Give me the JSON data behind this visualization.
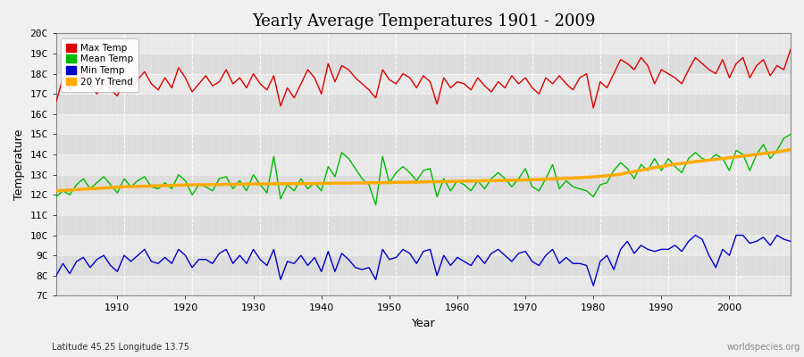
{
  "title": "Yearly Average Temperatures 1901 - 2009",
  "xlabel": "Year",
  "ylabel": "Temperature",
  "lat_lon_label": "Latitude 45.25 Longitude 13.75",
  "watermark": "worldspecies.org",
  "years_start": 1901,
  "years_end": 2009,
  "max_temp_color": "#dd0000",
  "mean_temp_color": "#00bb00",
  "min_temp_color": "#0000cc",
  "trend_color": "#ffaa00",
  "figure_bg_color": "#f0f0f0",
  "plot_bg_color": "#e8e8e8",
  "band_color_dark": "#dcdcdc",
  "grid_color": "#ffffff",
  "ytick_labels": [
    "7C",
    "8C",
    "9C",
    "10C",
    "11C",
    "12C",
    "13C",
    "14C",
    "15C",
    "16C",
    "17C",
    "18C",
    "19C",
    "20C"
  ],
  "ytick_values": [
    7,
    8,
    9,
    10,
    11,
    12,
    13,
    14,
    15,
    16,
    17,
    18,
    19,
    20
  ],
  "ylim": [
    7,
    20
  ],
  "xlim": [
    1901,
    2009
  ],
  "legend_entries": [
    "Max Temp",
    "Mean Temp",
    "Min Temp",
    "20 Yr Trend"
  ],
  "legend_colors": [
    "#dd0000",
    "#00bb00",
    "#0000cc",
    "#ffaa00"
  ],
  "max_temps": [
    16.6,
    17.8,
    17.2,
    17.5,
    18.0,
    17.4,
    17.0,
    17.6,
    17.2,
    16.9,
    17.8,
    17.3,
    17.7,
    18.1,
    17.5,
    17.2,
    17.8,
    17.3,
    18.3,
    17.8,
    17.1,
    17.5,
    17.9,
    17.4,
    17.6,
    18.2,
    17.5,
    17.8,
    17.3,
    18.0,
    17.5,
    17.2,
    17.9,
    16.4,
    17.3,
    16.8,
    17.5,
    18.2,
    17.8,
    17.0,
    18.5,
    17.6,
    18.4,
    18.2,
    17.8,
    17.5,
    17.2,
    16.8,
    18.2,
    17.7,
    17.5,
    18.0,
    17.8,
    17.3,
    17.9,
    17.6,
    16.5,
    17.8,
    17.3,
    17.6,
    17.5,
    17.2,
    17.8,
    17.4,
    17.1,
    17.6,
    17.3,
    17.9,
    17.5,
    17.8,
    17.3,
    17.0,
    17.8,
    17.5,
    17.9,
    17.5,
    17.2,
    17.8,
    18.0,
    16.3,
    17.6,
    17.3,
    18.0,
    18.7,
    18.5,
    18.2,
    18.8,
    18.4,
    17.5,
    18.2,
    18.0,
    17.8,
    17.5,
    18.2,
    18.8,
    18.5,
    18.2,
    18.0,
    18.7,
    17.8,
    18.5,
    18.8,
    17.8,
    18.4,
    18.7,
    17.9,
    18.4,
    18.2,
    19.2
  ],
  "mean_temps": [
    11.9,
    12.2,
    12.0,
    12.5,
    12.8,
    12.3,
    12.6,
    12.9,
    12.5,
    12.1,
    12.8,
    12.4,
    12.7,
    12.9,
    12.4,
    12.3,
    12.6,
    12.3,
    13.0,
    12.7,
    12.0,
    12.5,
    12.4,
    12.2,
    12.8,
    12.9,
    12.3,
    12.7,
    12.2,
    13.0,
    12.5,
    12.1,
    13.9,
    11.8,
    12.5,
    12.2,
    12.8,
    12.3,
    12.6,
    12.2,
    13.4,
    12.9,
    14.1,
    13.8,
    13.3,
    12.8,
    12.5,
    11.5,
    13.9,
    12.6,
    13.1,
    13.4,
    13.1,
    12.7,
    13.2,
    13.3,
    11.9,
    12.8,
    12.2,
    12.7,
    12.5,
    12.2,
    12.7,
    12.3,
    12.8,
    13.1,
    12.8,
    12.4,
    12.8,
    13.3,
    12.4,
    12.2,
    12.8,
    13.5,
    12.3,
    12.7,
    12.4,
    12.3,
    12.2,
    11.9,
    12.5,
    12.6,
    13.2,
    13.6,
    13.3,
    12.8,
    13.5,
    13.2,
    13.8,
    13.2,
    13.8,
    13.4,
    13.1,
    13.8,
    14.1,
    13.8,
    13.7,
    14.0,
    13.8,
    13.2,
    14.2,
    14.0,
    13.2,
    14.0,
    14.5,
    13.8,
    14.2,
    14.8,
    15.0
  ],
  "trend_temps": [
    12.2,
    12.22,
    12.24,
    12.26,
    12.28,
    12.3,
    12.32,
    12.34,
    12.36,
    12.38,
    12.4,
    12.41,
    12.42,
    12.43,
    12.44,
    12.45,
    12.46,
    12.47,
    12.48,
    12.49,
    12.5,
    12.5,
    12.5,
    12.51,
    12.51,
    12.52,
    12.52,
    12.53,
    12.53,
    12.54,
    12.54,
    12.54,
    12.55,
    12.55,
    12.55,
    12.55,
    12.56,
    12.56,
    12.56,
    12.57,
    12.57,
    12.58,
    12.58,
    12.58,
    12.59,
    12.59,
    12.6,
    12.6,
    12.6,
    12.61,
    12.62,
    12.62,
    12.63,
    12.63,
    12.64,
    12.65,
    12.65,
    12.66,
    12.66,
    12.67,
    12.68,
    12.68,
    12.69,
    12.7,
    12.7,
    12.71,
    12.72,
    12.72,
    12.73,
    12.74,
    12.75,
    12.76,
    12.78,
    12.79,
    12.8,
    12.82,
    12.83,
    12.85,
    12.87,
    12.89,
    12.92,
    12.95,
    12.98,
    13.02,
    13.1,
    13.15,
    13.22,
    13.28,
    13.35,
    13.4,
    13.46,
    13.52,
    13.55,
    13.6,
    13.65,
    13.68,
    13.72,
    13.76,
    13.8,
    13.84,
    13.88,
    13.92,
    13.96,
    14.0,
    14.05,
    14.08,
    14.12,
    14.18,
    14.25
  ],
  "min_temps": [
    8.0,
    8.6,
    8.1,
    8.7,
    8.9,
    8.4,
    8.8,
    9.0,
    8.5,
    8.2,
    9.0,
    8.7,
    9.0,
    9.3,
    8.7,
    8.6,
    8.9,
    8.6,
    9.3,
    9.0,
    8.4,
    8.8,
    8.8,
    8.6,
    9.1,
    9.3,
    8.6,
    9.0,
    8.6,
    9.3,
    8.8,
    8.5,
    9.3,
    7.8,
    8.7,
    8.6,
    9.0,
    8.5,
    8.9,
    8.2,
    9.2,
    8.2,
    9.1,
    8.8,
    8.4,
    8.3,
    8.4,
    7.8,
    9.3,
    8.8,
    8.9,
    9.3,
    9.1,
    8.6,
    9.2,
    9.3,
    8.0,
    9.0,
    8.5,
    8.9,
    8.7,
    8.5,
    9.0,
    8.6,
    9.1,
    9.3,
    9.0,
    8.7,
    9.1,
    9.2,
    8.7,
    8.5,
    9.0,
    9.3,
    8.6,
    8.9,
    8.6,
    8.6,
    8.5,
    7.5,
    8.7,
    9.0,
    8.3,
    9.3,
    9.7,
    9.1,
    9.5,
    9.3,
    9.2,
    9.3,
    9.3,
    9.5,
    9.2,
    9.7,
    10.0,
    9.8,
    9.0,
    8.4,
    9.3,
    9.0,
    10.0,
    10.0,
    9.6,
    9.7,
    9.9,
    9.5,
    10.0,
    9.8,
    9.7
  ]
}
